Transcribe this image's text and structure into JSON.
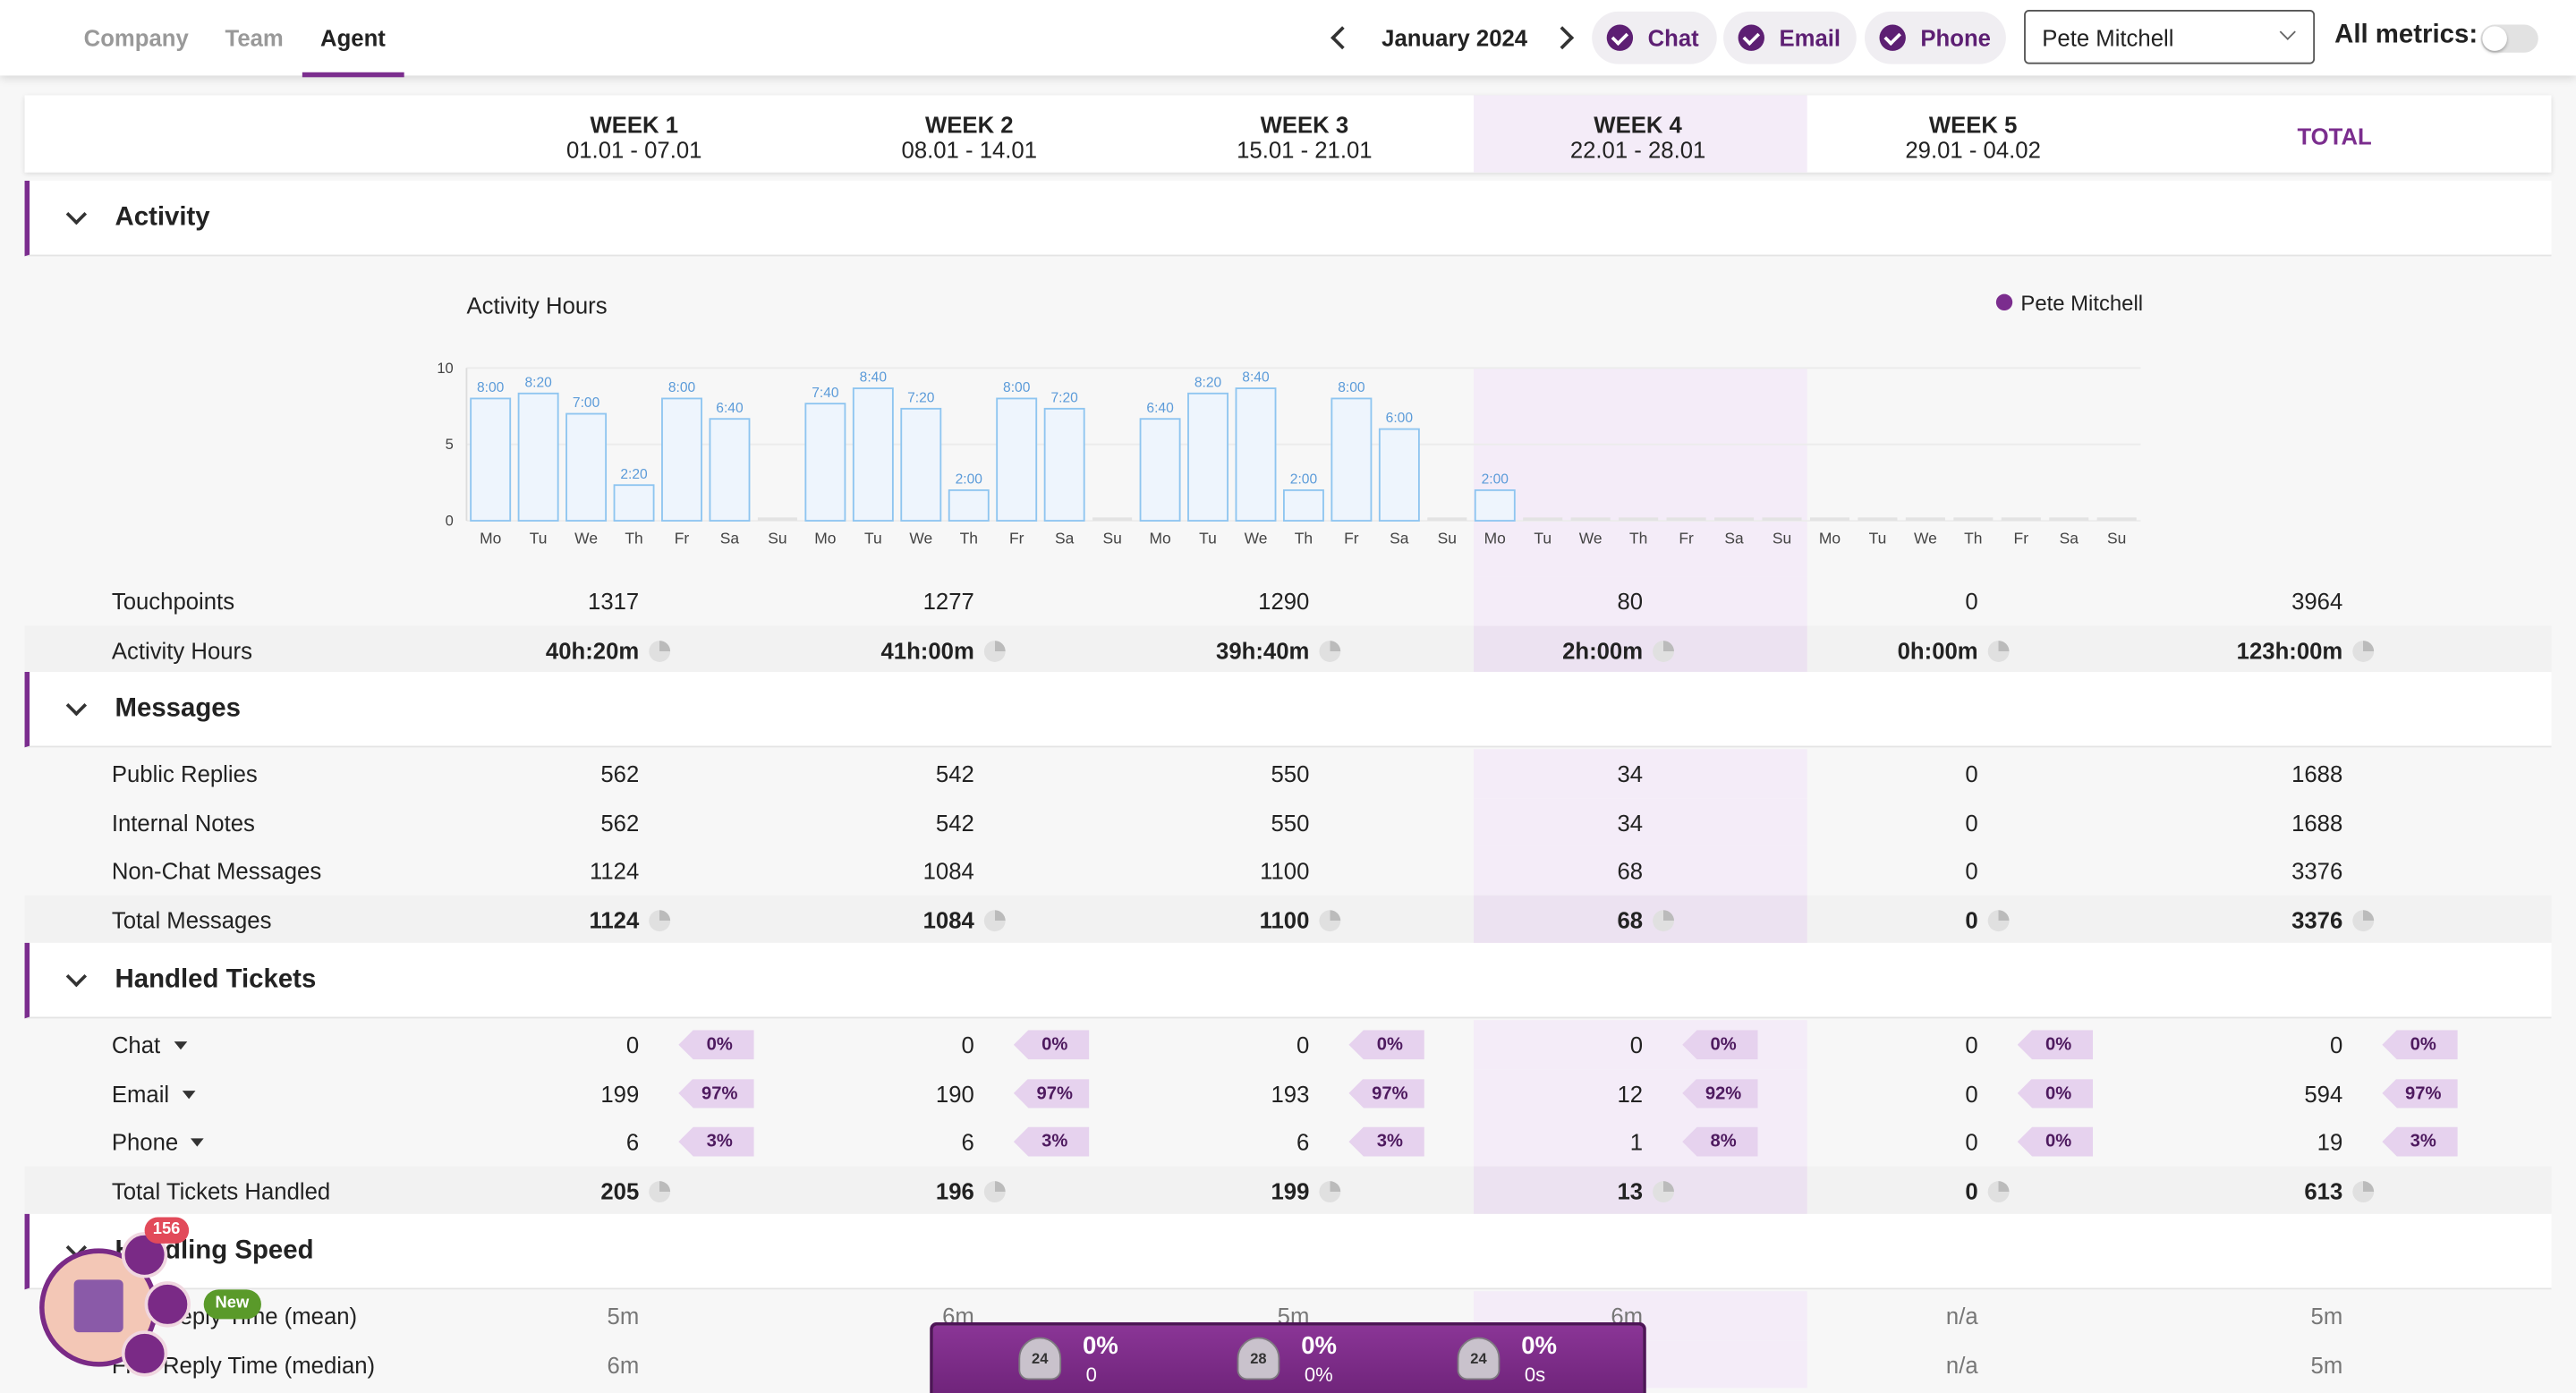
{
  "nav": {
    "tabs": [
      "Company",
      "Team",
      "Agent"
    ],
    "month": "January 2024",
    "channels": [
      "Chat",
      "Email",
      "Phone"
    ],
    "agent": "Pete Mitchell",
    "all_metrics": "All metrics:"
  },
  "columns": [
    {
      "title": "WEEK 1",
      "dates": "01.01 - 07.01"
    },
    {
      "title": "WEEK 2",
      "dates": "08.01 - 14.01"
    },
    {
      "title": "WEEK 3",
      "dates": "15.01 - 21.01"
    },
    {
      "title": "WEEK 4",
      "dates": "22.01 - 28.01"
    },
    {
      "title": "WEEK 5",
      "dates": "29.01 - 04.02"
    },
    {
      "title": "TOTAL"
    }
  ],
  "sections": [
    {
      "title": "Activity",
      "chart": {
        "type": "bar",
        "title": "Activity Hours",
        "legend": "Pete Mitchell",
        "color": "#8ec5f0",
        "categories": [
          "Mo",
          "Tu",
          "We",
          "Th",
          "Fr",
          "Sa",
          "Su",
          "Mo",
          "Tu",
          "We",
          "Th",
          "Fr",
          "Sa",
          "Su",
          "Mo",
          "Tu",
          "We",
          "Th",
          "Fr",
          "Sa",
          "Su",
          "Mo",
          "Tu",
          "We",
          "Th",
          "Fr",
          "Sa",
          "Su",
          "Mo",
          "Tu",
          "We",
          "Th",
          "Fr",
          "Sa",
          "Su"
        ],
        "values": [
          8,
          8.333,
          7,
          2.333,
          8,
          6.667,
          0,
          7.667,
          8.667,
          7.333,
          2,
          8,
          7.333,
          0,
          6.667,
          8.333,
          8.667,
          2,
          8,
          6,
          0,
          2,
          0,
          0,
          0,
          0,
          0,
          0,
          0,
          0,
          0,
          0,
          0,
          0,
          0
        ],
        "value_labels": [
          "8:00",
          "8:20",
          "7:00",
          "2:20",
          "8:00",
          "6:40",
          null,
          "7:40",
          "8:40",
          "7:20",
          "2:00",
          "8:00",
          "7:20",
          null,
          "6:40",
          "8:20",
          "8:40",
          "2:00",
          "8:00",
          "6:00",
          null,
          "2:00",
          null,
          null,
          null,
          null,
          null,
          null,
          null,
          null,
          null,
          null,
          null,
          null,
          null
        ],
        "ylim": [
          0,
          10
        ],
        "yticks": [
          0,
          5,
          10
        ]
      },
      "rows": [
        {
          "label": "Touchpoints",
          "values": [
            1317,
            1277,
            1290,
            80,
            0,
            3964
          ]
        },
        {
          "label": "Activity Hours",
          "values": [
            "40h:20m",
            "41h:00m",
            "39h:40m",
            "2h:00m",
            "0h:00m",
            "123h:00m"
          ],
          "total": true
        }
      ]
    },
    {
      "title": "Messages",
      "rows": [
        {
          "label": "Public Replies",
          "values": [
            562,
            542,
            550,
            34,
            0,
            1688
          ]
        },
        {
          "label": "Internal Notes",
          "values": [
            562,
            542,
            550,
            34,
            0,
            1688
          ]
        },
        {
          "label": "Non-Chat Messages",
          "values": [
            1124,
            1084,
            1100,
            68,
            0,
            3376
          ]
        },
        {
          "label": "Total Messages",
          "values": [
            1124,
            1084,
            1100,
            68,
            0,
            3376
          ],
          "total": true
        }
      ]
    },
    {
      "title": "Handled Tickets",
      "rows": [
        {
          "label": "Chat",
          "values": [
            0,
            0,
            0,
            0,
            0,
            0
          ],
          "shares": [
            "0%",
            "0%",
            "0%",
            "0%",
            "0%",
            "0%"
          ]
        },
        {
          "label": "Email",
          "values": [
            199,
            190,
            193,
            12,
            0,
            594
          ],
          "shares": [
            "97%",
            "97%",
            "97%",
            "92%",
            "0%",
            "97%"
          ]
        },
        {
          "label": "Phone",
          "values": [
            6,
            6,
            6,
            1,
            0,
            19
          ],
          "shares": [
            "3%",
            "3%",
            "3%",
            "8%",
            "0%",
            "3%"
          ]
        },
        {
          "label": "Total Tickets Handled",
          "values": [
            205,
            196,
            199,
            13,
            0,
            613
          ],
          "total": true
        }
      ]
    },
    {
      "title": "Handling Speed",
      "rows": [
        {
          "label": "First Reply Time (mean)",
          "values": [
            "5m",
            "6m",
            "5m",
            "6m",
            "n/a",
            "5m"
          ]
        },
        {
          "label": "First Reply Time (median)",
          "values": [
            "6m",
            null,
            null,
            null,
            "n/a",
            "5m"
          ]
        }
      ]
    }
  ],
  "widget": {
    "notifications": "156",
    "badge": "New",
    "stats": [
      {
        "rank": "24",
        "value": "0%",
        "sub": "0"
      },
      {
        "rank": "28",
        "value": "0%",
        "sub": "0%"
      },
      {
        "rank": "24",
        "value": "0%",
        "sub": "0s"
      }
    ]
  }
}
